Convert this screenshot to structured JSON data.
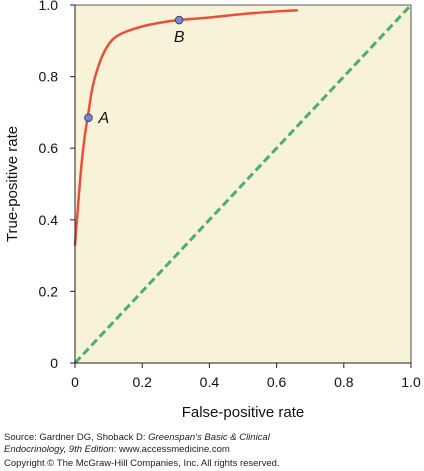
{
  "chart_data": {
    "type": "line",
    "xlabel": "False-positive rate",
    "ylabel": "True-positive rate",
    "xlim": [
      0,
      1.0
    ],
    "ylim": [
      0,
      1.0
    ],
    "x_ticks": [
      "0",
      "0.2",
      "0.4",
      "0.6",
      "0.8",
      "1.0"
    ],
    "y_ticks": [
      "0",
      "0.2",
      "0.4",
      "0.6",
      "0.8",
      "1.0"
    ],
    "grid": false,
    "background": "#f8f2d8",
    "series": [
      {
        "kind": "curve",
        "color": "#e8503a",
        "x": [
          0.0,
          0.01,
          0.02,
          0.03,
          0.04,
          0.05,
          0.06,
          0.08,
          0.1,
          0.12,
          0.15,
          0.2,
          0.25,
          0.31,
          0.4,
          0.5,
          0.6,
          0.66
        ],
        "y": [
          0.33,
          0.45,
          0.56,
          0.64,
          0.7,
          0.76,
          0.8,
          0.855,
          0.89,
          0.91,
          0.925,
          0.94,
          0.95,
          0.958,
          0.965,
          0.975,
          0.982,
          0.985
        ]
      },
      {
        "kind": "diagonal",
        "color": "#4caf6e",
        "x": [
          0,
          1.0
        ],
        "y": [
          0,
          1.0
        ]
      }
    ],
    "points": [
      {
        "label": "A",
        "x": 0.04,
        "y": 0.685
      },
      {
        "label": "B",
        "x": 0.31,
        "y": 0.958
      }
    ],
    "point_color": "#7b86c8"
  },
  "credits": {
    "line1_prefix": "Source: Gardner DG, Shoback D: ",
    "line1_italic": "Greenspan's Basic & Clinical",
    "line2_italic": "Endocrinology, 9th Edition",
    "line2_suffix": ": www.accessmedicine.com",
    "line3": "Copyright © The McGraw-Hill Companies, Inc. All rights reserved."
  }
}
